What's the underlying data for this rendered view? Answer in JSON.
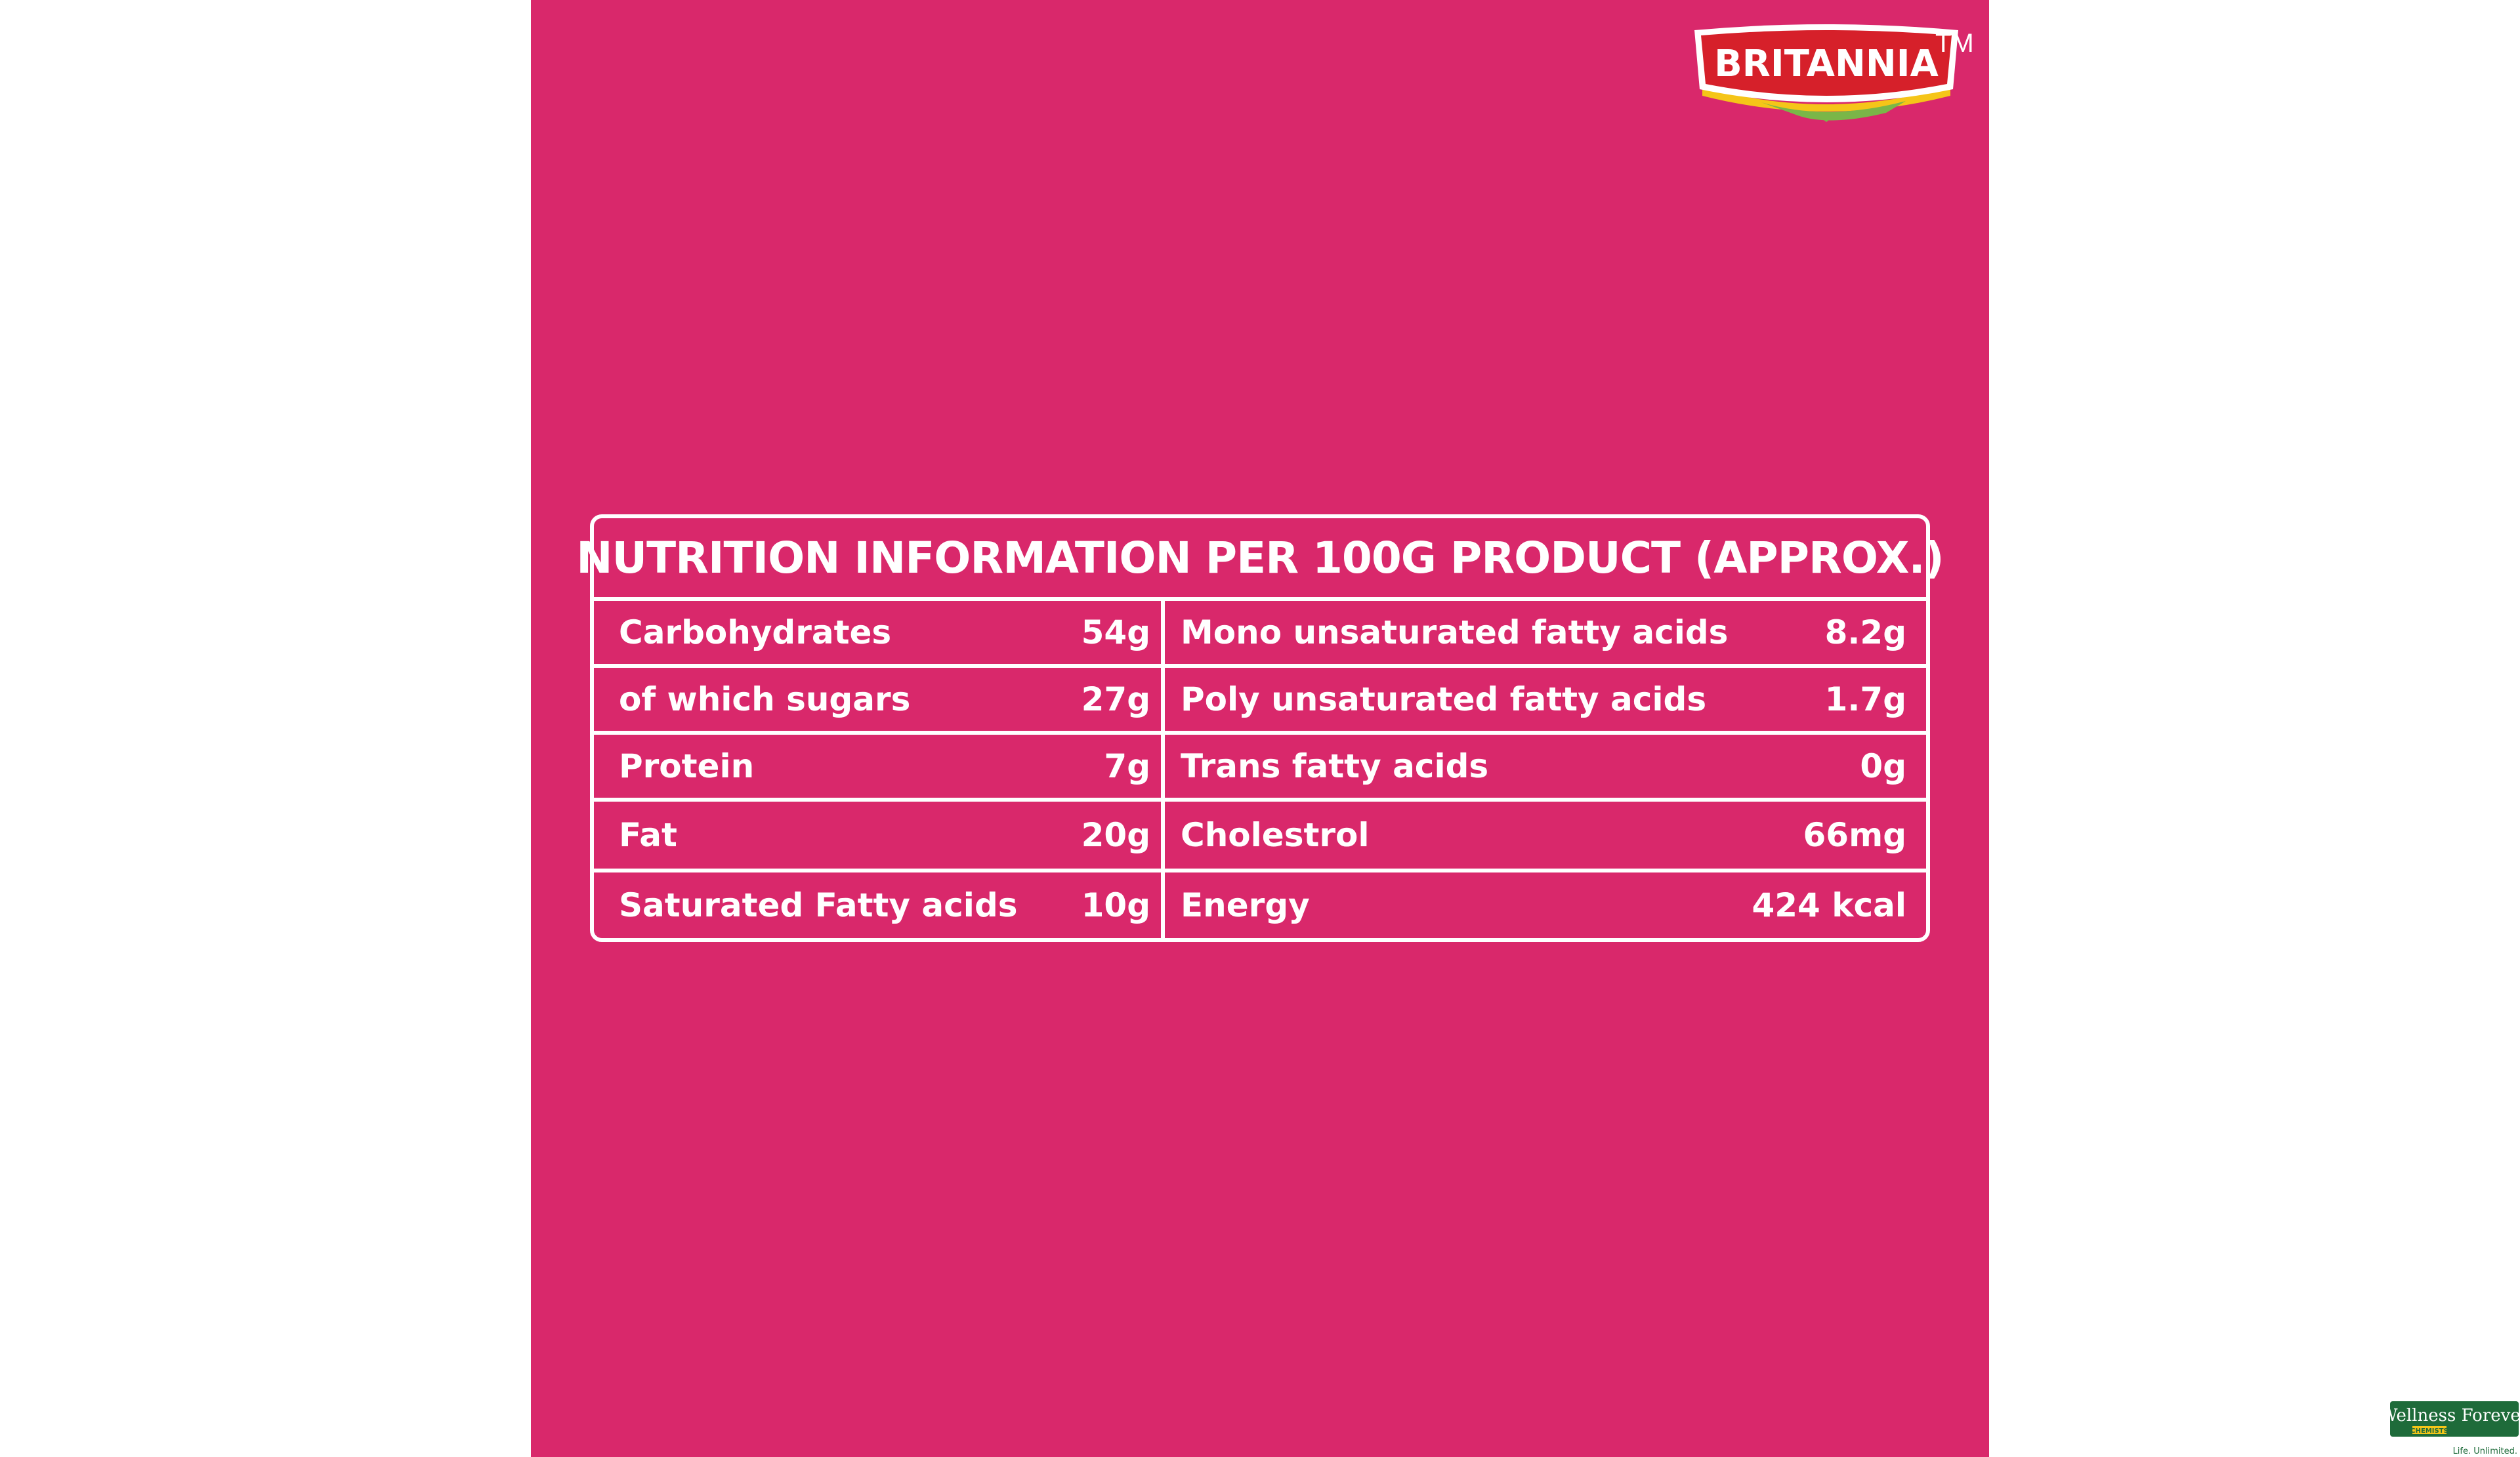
{
  "brand": {
    "logo_text": "BRITANNIA",
    "trademark": "TM",
    "logo_icon": "britannia-logo-icon"
  },
  "nutrition": {
    "title": "NUTRITION INFORMATION PER 100G PRODUCT (APPROX.)",
    "rows": [
      {
        "left_label": "Carbohydrates",
        "left_value": "54g",
        "right_label": "Mono unsaturated fatty acids",
        "right_value": "8.2g"
      },
      {
        "left_label": "of which sugars",
        "left_value": "27g",
        "right_label": "Poly unsaturated fatty acids",
        "right_value": "1.7g"
      },
      {
        "left_label": "Protein",
        "left_value": "7g",
        "right_label": "Trans fatty acids",
        "right_value": "0g"
      },
      {
        "left_label": "Fat",
        "left_value": "20g",
        "right_label": "Cholestrol",
        "right_value": "66mg"
      },
      {
        "left_label": "Saturated Fatty acids",
        "left_value": "10g",
        "right_label": "Energy",
        "right_value": "424 kcal"
      }
    ]
  },
  "retailer": {
    "logo_text": "Wellness Forever",
    "subtext": "CHEMISTS",
    "tagline": "Life. Unlimited.",
    "logo_icon": "wellness-forever-logo-icon"
  },
  "colors": {
    "panel_background": "#d9286b",
    "page_background": "#ffffff",
    "table_lines": "#ffffff",
    "logo_red": "#d6202a",
    "logo_yellow": "#f5c518",
    "logo_green": "#7ab648",
    "retailer_green": "#1e6b3a"
  }
}
